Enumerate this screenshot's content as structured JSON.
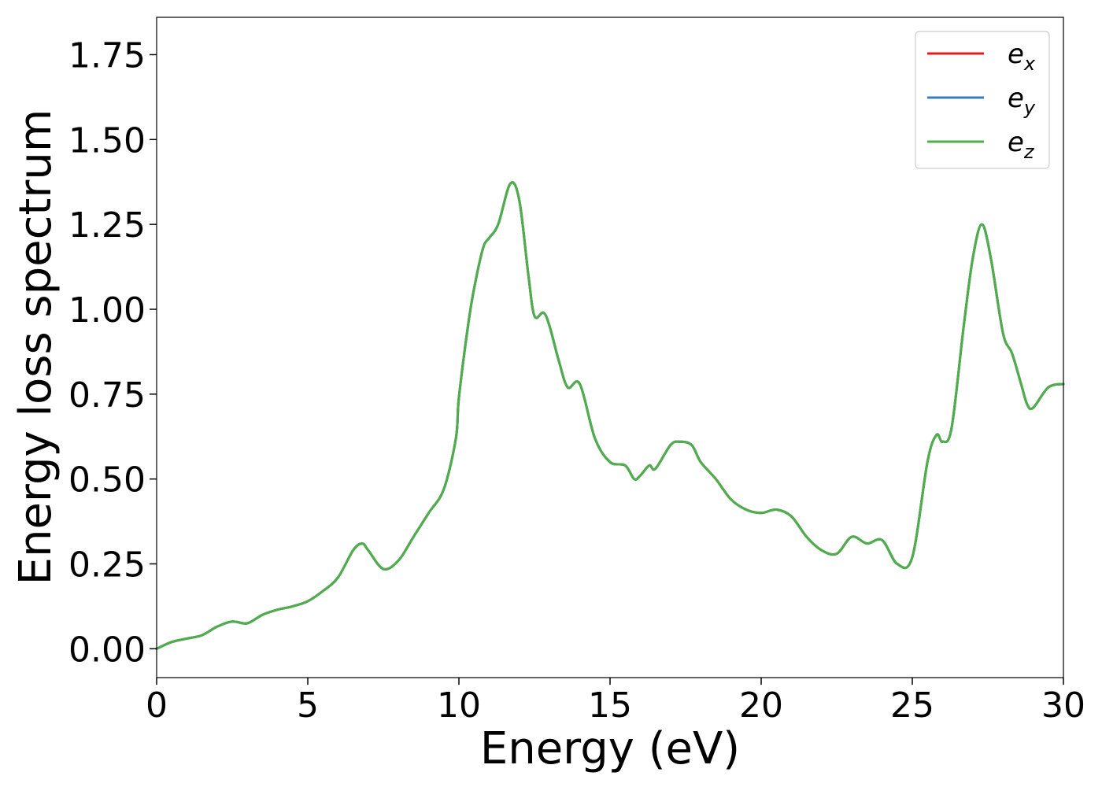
{
  "chart_data": {
    "type": "line",
    "title": "",
    "xlabel": "Energy (eV)",
    "ylabel": "Energy loss spectrum",
    "xlim": [
      0,
      30
    ],
    "ylim": [
      -0.085,
      1.86
    ],
    "xticks": [
      0,
      5,
      10,
      15,
      20,
      25,
      30
    ],
    "xtick_labels": [
      "0",
      "5",
      "10",
      "15",
      "20",
      "25",
      "30"
    ],
    "yticks": [
      0.0,
      0.25,
      0.5,
      0.75,
      1.0,
      1.25,
      1.5,
      1.75
    ],
    "ytick_labels": [
      "0.00",
      "0.25",
      "0.50",
      "0.75",
      "1.00",
      "1.25",
      "1.50",
      "1.75"
    ],
    "grid": false,
    "legend_position": "top-right",
    "x": [
      0,
      0.5,
      1.0,
      1.5,
      2.0,
      2.5,
      3.0,
      3.5,
      4.0,
      4.5,
      5.0,
      5.5,
      6.0,
      6.5,
      6.8,
      7.0,
      7.5,
      8.0,
      8.5,
      9.0,
      9.5,
      9.9,
      10.0,
      10.3,
      10.5,
      10.8,
      11.0,
      11.3,
      11.7,
      12.0,
      12.3,
      12.5,
      12.8,
      13.0,
      13.3,
      13.6,
      14.0,
      14.5,
      15.0,
      15.5,
      15.8,
      16.0,
      16.3,
      16.5,
      17.0,
      17.3,
      17.7,
      18.0,
      18.5,
      19.0,
      19.5,
      20.0,
      20.5,
      21.0,
      21.5,
      22.0,
      22.5,
      23.0,
      23.5,
      24.0,
      24.5,
      25.0,
      25.5,
      25.8,
      26.0,
      26.3,
      26.7,
      27.0,
      27.3,
      27.6,
      28.0,
      28.3,
      28.6,
      28.8,
      29.0,
      29.5,
      30.0
    ],
    "series": [
      {
        "name": "e_x",
        "label_base": "e",
        "label_sub": "x",
        "color": "#e41a1c",
        "values": [
          0.0,
          0.02,
          0.03,
          0.04,
          0.065,
          0.08,
          0.075,
          0.1,
          0.115,
          0.125,
          0.14,
          0.17,
          0.21,
          0.29,
          0.31,
          0.29,
          0.235,
          0.26,
          0.33,
          0.4,
          0.47,
          0.62,
          0.74,
          0.95,
          1.06,
          1.18,
          1.21,
          1.25,
          1.37,
          1.32,
          1.1,
          0.98,
          0.99,
          0.95,
          0.85,
          0.77,
          0.78,
          0.62,
          0.55,
          0.54,
          0.5,
          0.51,
          0.54,
          0.53,
          0.6,
          0.61,
          0.6,
          0.55,
          0.5,
          0.44,
          0.41,
          0.4,
          0.41,
          0.39,
          0.33,
          0.29,
          0.28,
          0.33,
          0.31,
          0.32,
          0.25,
          0.27,
          0.55,
          0.63,
          0.61,
          0.65,
          0.95,
          1.15,
          1.25,
          1.15,
          0.93,
          0.87,
          0.78,
          0.72,
          0.71,
          0.77,
          0.78
        ]
      },
      {
        "name": "e_y",
        "label_base": "e",
        "label_sub": "y",
        "color": "#377eb8",
        "values": [
          0.0,
          0.02,
          0.03,
          0.04,
          0.065,
          0.08,
          0.075,
          0.1,
          0.115,
          0.125,
          0.14,
          0.17,
          0.21,
          0.29,
          0.31,
          0.29,
          0.235,
          0.26,
          0.33,
          0.4,
          0.47,
          0.62,
          0.74,
          0.95,
          1.06,
          1.18,
          1.21,
          1.25,
          1.37,
          1.32,
          1.1,
          0.98,
          0.99,
          0.95,
          0.85,
          0.77,
          0.78,
          0.62,
          0.55,
          0.54,
          0.5,
          0.51,
          0.54,
          0.53,
          0.6,
          0.61,
          0.6,
          0.55,
          0.5,
          0.44,
          0.41,
          0.4,
          0.41,
          0.39,
          0.33,
          0.29,
          0.28,
          0.33,
          0.31,
          0.32,
          0.25,
          0.27,
          0.55,
          0.63,
          0.61,
          0.65,
          0.95,
          1.15,
          1.25,
          1.15,
          0.93,
          0.87,
          0.78,
          0.72,
          0.71,
          0.77,
          0.78
        ]
      },
      {
        "name": "e_z",
        "label_base": "e",
        "label_sub": "z",
        "color": "#4daf4a",
        "values": [
          0.0,
          0.02,
          0.03,
          0.04,
          0.065,
          0.08,
          0.075,
          0.1,
          0.115,
          0.125,
          0.14,
          0.17,
          0.21,
          0.29,
          0.31,
          0.29,
          0.235,
          0.26,
          0.33,
          0.4,
          0.47,
          0.62,
          0.74,
          0.95,
          1.06,
          1.18,
          1.21,
          1.25,
          1.37,
          1.32,
          1.1,
          0.98,
          0.99,
          0.95,
          0.85,
          0.77,
          0.78,
          0.62,
          0.55,
          0.54,
          0.5,
          0.51,
          0.54,
          0.53,
          0.6,
          0.61,
          0.6,
          0.55,
          0.5,
          0.44,
          0.41,
          0.4,
          0.41,
          0.39,
          0.33,
          0.29,
          0.28,
          0.33,
          0.31,
          0.32,
          0.25,
          0.27,
          0.55,
          0.63,
          0.61,
          0.65,
          0.95,
          1.15,
          1.25,
          1.15,
          0.93,
          0.87,
          0.78,
          0.72,
          0.71,
          0.77,
          0.78
        ]
      }
    ]
  }
}
